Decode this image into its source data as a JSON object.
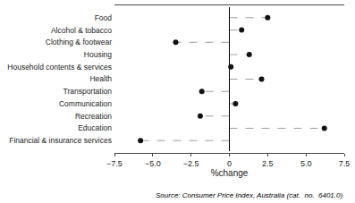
{
  "chart_data": {
    "type": "lollipop",
    "orientation": "horizontal",
    "categories": [
      "Food",
      "Alcohol & tobacco",
      "Clothing & footwear",
      "Housing",
      "Household contents & services",
      "Health",
      "Transportation",
      "Communication",
      "Recreation",
      "Education",
      "Financial & insurance services"
    ],
    "values": [
      2.5,
      0.8,
      -3.5,
      1.3,
      0.1,
      2.1,
      -1.8,
      0.4,
      -1.9,
      6.2,
      -5.8
    ],
    "color": "#111111",
    "line_style": "dashed",
    "marker": "circle",
    "xlabel": "%change",
    "xlim": [
      -7.5,
      7.5
    ],
    "xticks": [
      {
        "value": -7.5,
        "label": "−7.5"
      },
      {
        "value": -5.0,
        "label": "−5.0"
      },
      {
        "value": -2.5,
        "label": "−2.5"
      },
      0,
      2.5,
      {
        "value": 5.0,
        "label": "5.0"
      },
      7.5
    ],
    "annotations": [
      "Source: Consumer Price Index, Australia (cat.  no.  6401.0)"
    ],
    "grid": false
  }
}
